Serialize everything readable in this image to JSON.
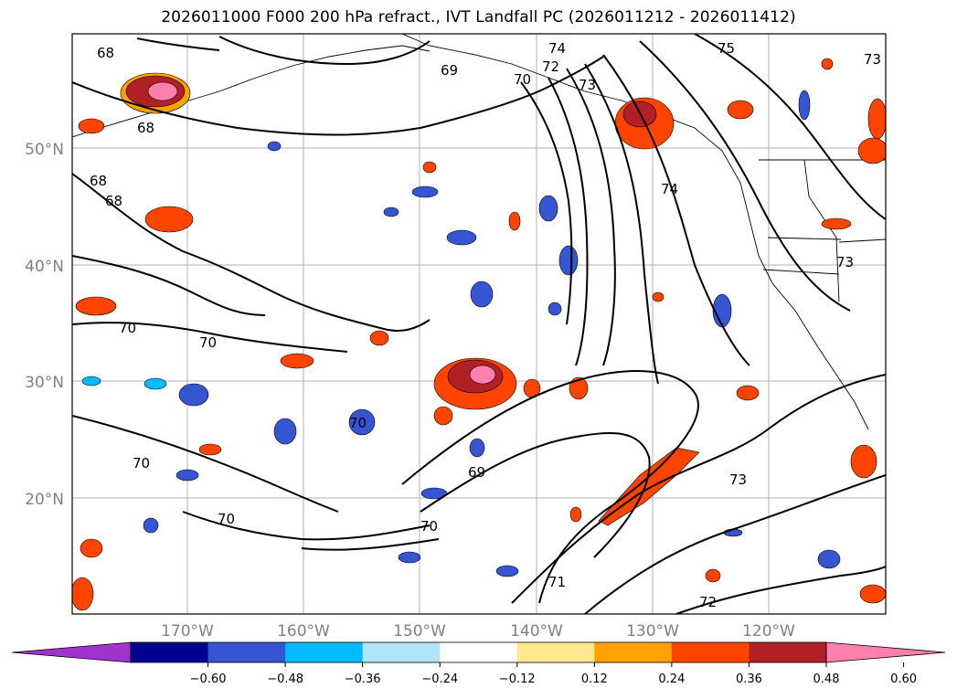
{
  "title": "2026011000 F000 200 hPa refract., IVT Landfall PC (2026011212 - 2026011412)",
  "map": {
    "latitude_labels": [
      "50°N",
      "40°N",
      "30°N",
      "20°N"
    ],
    "longitude_labels": [
      "170°W",
      "160°W",
      "150°W",
      "140°W",
      "130°W",
      "120°W"
    ],
    "contour_labels": [
      "68",
      "68",
      "68",
      "68",
      "69",
      "69",
      "70",
      "70",
      "70",
      "70",
      "70",
      "70",
      "71",
      "72",
      "72",
      "73",
      "73",
      "73",
      "73",
      "74",
      "74",
      "75"
    ],
    "grid": true
  },
  "colorbar": {
    "colors": [
      "#9f33cc",
      "#000092",
      "#3555d2",
      "#00bbff",
      "#b1e3fb",
      "#ffffff",
      "#ffe890",
      "#ffa200",
      "#ff4400",
      "#b02024",
      "#ff80ad"
    ],
    "ticks": [
      "−0.60",
      "−0.48",
      "−0.36",
      "−0.24",
      "−0.12",
      "0.12",
      "0.24",
      "0.36",
      "0.48",
      "0.60"
    ]
  }
}
